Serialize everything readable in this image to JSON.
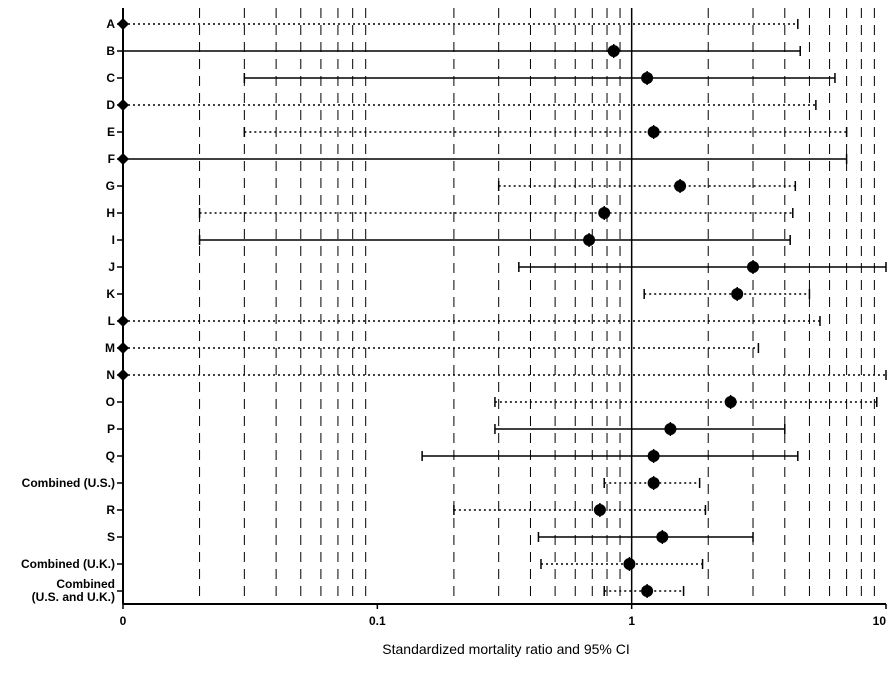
{
  "chart_data": {
    "type": "forest",
    "xlabel": "Standardized mortality ratio and 95% CI",
    "xscale": "log",
    "xlim": [
      0.01,
      10
    ],
    "x_tick_labels": [
      "0",
      "0.1",
      "1",
      "10"
    ],
    "reference_line": 1,
    "grid": "dashed vertical at log-scale minor ticks",
    "rows": [
      {
        "label": "A",
        "smr": 0,
        "ci": [
          0,
          4.5
        ],
        "line": "dotted"
      },
      {
        "label": "B",
        "smr": 0.85,
        "ci": [
          0,
          4.6
        ],
        "line": "solid"
      },
      {
        "label": "C",
        "smr": 1.15,
        "ci": [
          0.03,
          6.3
        ],
        "line": "solid"
      },
      {
        "label": "D",
        "smr": 0,
        "ci": [
          0,
          5.3
        ],
        "line": "dotted"
      },
      {
        "label": "E",
        "smr": 1.22,
        "ci": [
          0.03,
          7.0
        ],
        "line": "dotted"
      },
      {
        "label": "F",
        "smr": 0,
        "ci": [
          0,
          7.0
        ],
        "line": "solid"
      },
      {
        "label": "G",
        "smr": 1.55,
        "ci": [
          0.3,
          4.4
        ],
        "line": "dotted"
      },
      {
        "label": "H",
        "smr": 0.78,
        "ci": [
          0.02,
          4.3
        ],
        "line": "dotted"
      },
      {
        "label": "I",
        "smr": 0.68,
        "ci": [
          0.02,
          4.2
        ],
        "line": "solid"
      },
      {
        "label": "J",
        "smr": 3.0,
        "ci": [
          0.36,
          10.0
        ],
        "line": "solid"
      },
      {
        "label": "K",
        "smr": 2.6,
        "ci": [
          1.12,
          5.0
        ],
        "line": "dotted"
      },
      {
        "label": "L",
        "smr": 0,
        "ci": [
          0,
          5.5
        ],
        "line": "dotted"
      },
      {
        "label": "M",
        "smr": 0,
        "ci": [
          0,
          3.15
        ],
        "line": "dotted"
      },
      {
        "label": "N",
        "smr": 0,
        "ci": [
          0,
          10.0
        ],
        "line": "dotted"
      },
      {
        "label": "O",
        "smr": 2.45,
        "ci": [
          0.29,
          9.2
        ],
        "line": "dotted"
      },
      {
        "label": "P",
        "smr": 1.42,
        "ci": [
          0.29,
          4.0
        ],
        "line": "solid"
      },
      {
        "label": "Q",
        "smr": 1.22,
        "ci": [
          0.15,
          4.5
        ],
        "line": "solid"
      },
      {
        "label": "Combined (U.S.)",
        "smr": 1.22,
        "ci": [
          0.78,
          1.85
        ],
        "line": "dotted"
      },
      {
        "label": "R",
        "smr": 0.75,
        "ci": [
          0.2,
          1.95
        ],
        "line": "dotted"
      },
      {
        "label": "S",
        "smr": 1.32,
        "ci": [
          0.43,
          3.0
        ],
        "line": "solid"
      },
      {
        "label": "Combined (U.K.)",
        "smr": 0.98,
        "ci": [
          0.44,
          1.9
        ],
        "line": "dotted"
      },
      {
        "label": [
          "Combined",
          "(U.S. and U.K.)"
        ],
        "smr": 1.15,
        "ci": [
          0.78,
          1.6
        ],
        "line": "dotted"
      }
    ]
  }
}
